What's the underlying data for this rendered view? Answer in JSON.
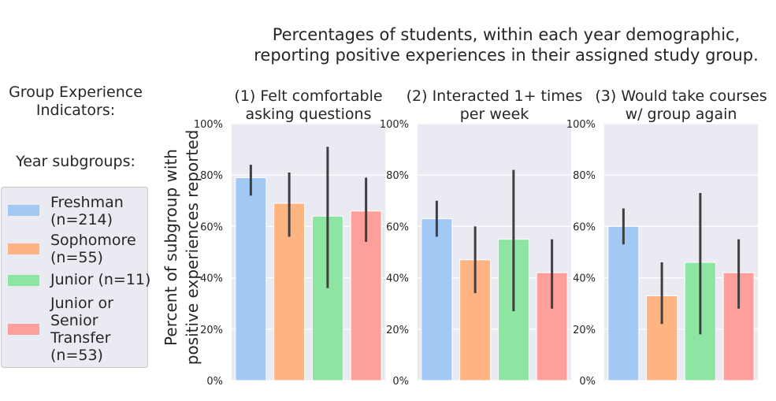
{
  "suptitle": {
    "line1": "Percentages of students, within each year demographic,",
    "line2": "reporting positive experiences in their assigned study group."
  },
  "side": {
    "heading_line1": "Group Experience",
    "heading_line2": "Indicators:",
    "subgroups_label": "Year subgroups:"
  },
  "legend": {
    "items": [
      {
        "lines": [
          "Freshman",
          "(n=214)"
        ],
        "color": "#a1c9f4"
      },
      {
        "lines": [
          "Sophomore",
          "(n=55)"
        ],
        "color": "#ffb482"
      },
      {
        "lines": [
          "Junior (n=11)"
        ],
        "color": "#8de5a1"
      },
      {
        "lines": [
          "Junior or",
          "Senior",
          "Transfer",
          "(n=53)"
        ],
        "color": "#ff9f9b"
      }
    ]
  },
  "chart_data": {
    "type": "bar",
    "ylabel_line1": "Percent of subgroup with",
    "ylabel_line2": "positive experiences reported",
    "ylim": [
      0,
      100
    ],
    "yticks": [
      "0%",
      "20%",
      "40%",
      "60%",
      "80%",
      "100%"
    ],
    "grid": true,
    "categories": [
      "Freshman (n=214)",
      "Sophomore (n=55)",
      "Junior (n=11)",
      "Junior or Senior Transfer (n=53)"
    ],
    "panels": [
      {
        "title_line1": "(1) Felt comfortable",
        "title_line2": "asking questions",
        "values": [
          79,
          69,
          64,
          66
        ],
        "ci_low": [
          72,
          56,
          36,
          54
        ],
        "ci_high": [
          84,
          81,
          91,
          79
        ]
      },
      {
        "title_line1": "(2) Interacted 1+ times",
        "title_line2": "per week",
        "values": [
          63,
          47,
          55,
          42
        ],
        "ci_low": [
          56,
          34,
          27,
          28
        ],
        "ci_high": [
          70,
          60,
          82,
          55
        ]
      },
      {
        "title_line1": "(3) Would take courses",
        "title_line2": "w/ group again",
        "values": [
          60,
          33,
          46,
          42
        ],
        "ci_low": [
          53,
          22,
          18,
          28
        ],
        "ci_high": [
          67,
          46,
          73,
          55
        ]
      }
    ],
    "colors": [
      "#a1c9f4",
      "#ffb482",
      "#8de5a1",
      "#ff9f9b"
    ],
    "errorbar_color": "#3f3f3f",
    "background": "#eaeaf2"
  }
}
